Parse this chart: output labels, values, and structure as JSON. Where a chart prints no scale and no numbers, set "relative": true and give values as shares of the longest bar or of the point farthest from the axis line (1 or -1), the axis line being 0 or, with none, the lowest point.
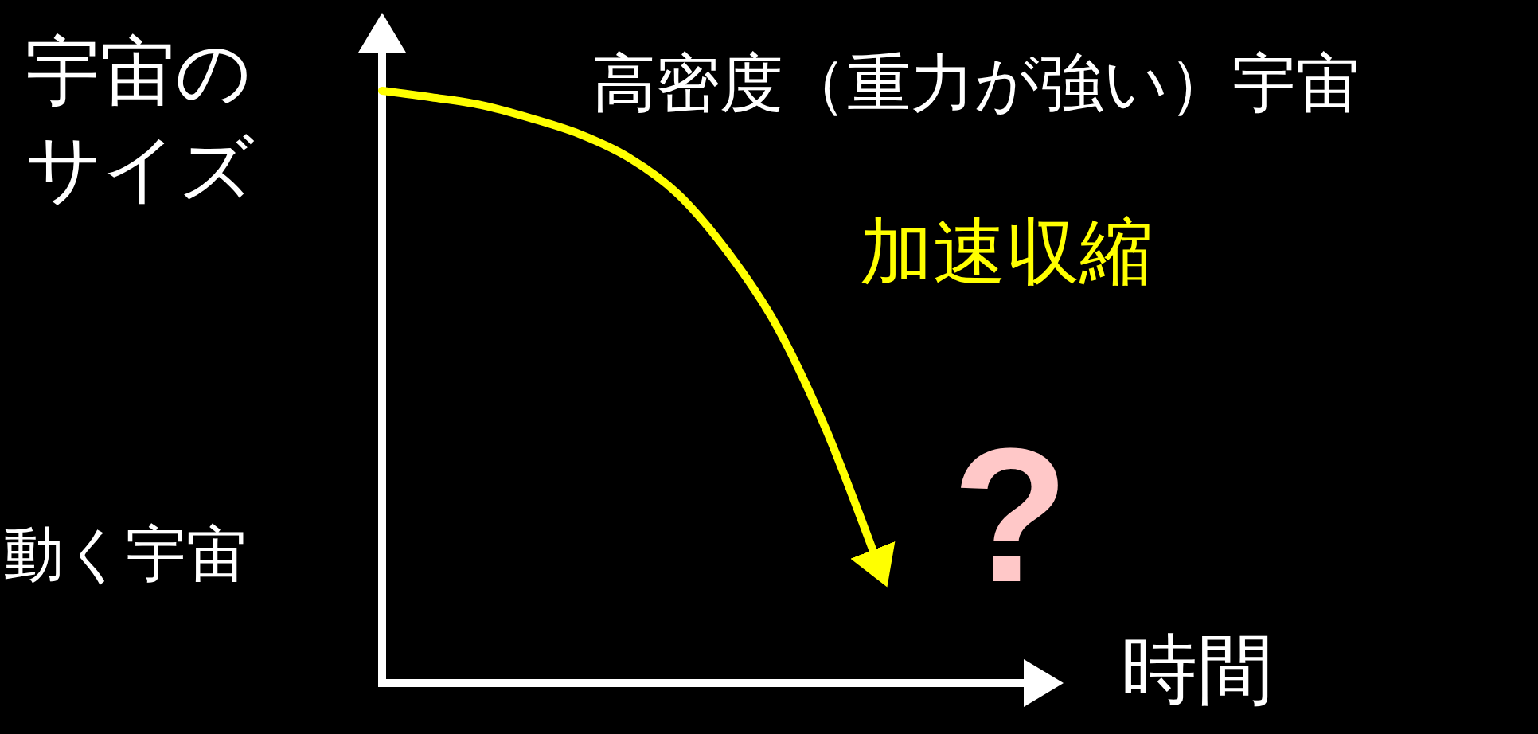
{
  "chart_data": {
    "type": "line",
    "relative": true,
    "xlabel": "時間",
    "ylabel": "宇宙のサイズ",
    "categories": [
      null,
      null,
      null,
      null,
      null,
      null,
      null,
      null,
      null,
      null,
      null,
      null,
      null,
      null
    ],
    "series": [
      {
        "name": "高密度（重力が強い）宇宙",
        "color": "#ffff00",
        "values": [
          1,
          0.989,
          0.976,
          0.954,
          0.927,
          0.887,
          0.825,
          0.728,
          0.602,
          0.427,
          0.212,
          null,
          null,
          null
        ]
      }
    ],
    "annotations": [
      "加速収縮",
      "?",
      "動く宇宙"
    ],
    "marker": "none",
    "line_style": "solid"
  }
}
